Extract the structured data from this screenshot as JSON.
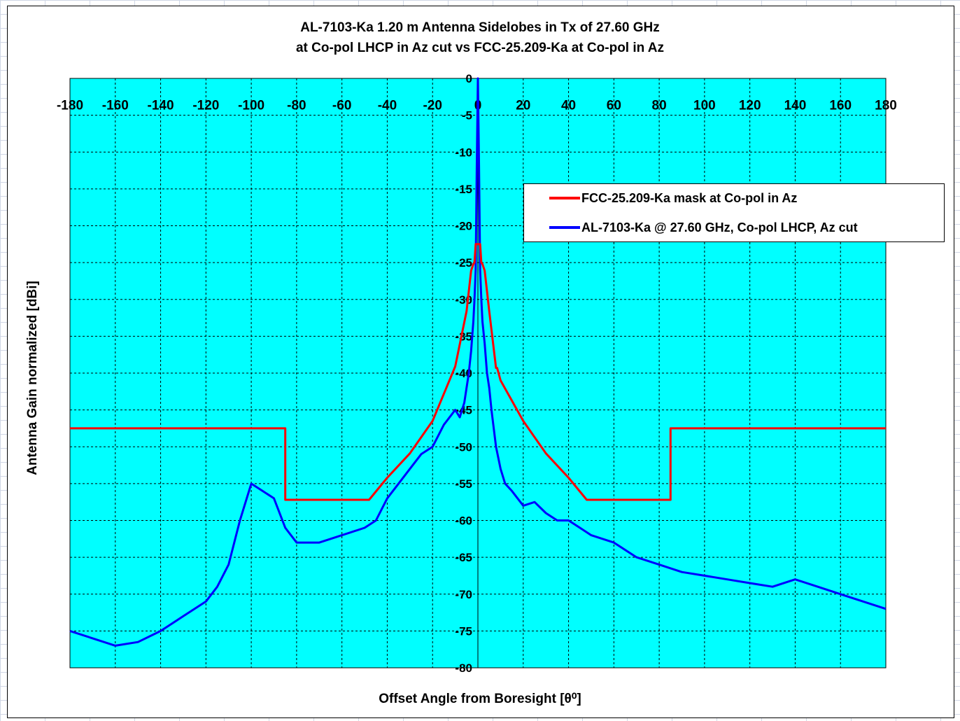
{
  "chart_data": {
    "type": "line",
    "title": "AL-7103-Ka 1.20 m Antenna Sidelobes in Tx of 27.60 GHz",
    "subtitle": "at Co-pol LHCP in Az cut vs FCC-25.209-Ka at Co-pol in Az",
    "xlabel": "Offset Angle from Boresight [θ⁰]",
    "ylabel": "Antenna Gain normalized [dBi]",
    "xlim": [
      -180,
      180
    ],
    "ylim": [
      -80,
      0
    ],
    "xticks": [
      "-180",
      "-160",
      "-140",
      "-120",
      "-100",
      "-80",
      "-60",
      "-40",
      "-20",
      "0",
      "20",
      "40",
      "60",
      "80",
      "100",
      "120",
      "140",
      "160",
      "180"
    ],
    "yticks": [
      "0",
      "-5",
      "-10",
      "-15",
      "-20",
      "-25",
      "-30",
      "-35",
      "-40",
      "-45",
      "-50",
      "-55",
      "-60",
      "-65",
      "-70",
      "-75",
      "-80"
    ],
    "grid": true,
    "plot_background": "#00ffff",
    "legend_position": "top-right",
    "series": [
      {
        "name": "FCC-25.209-Ka mask at Co-pol in Az",
        "color": "#ff0000",
        "x": [
          -180,
          -85,
          -85,
          -48,
          -40,
          -30,
          -20,
          -10,
          -5,
          -3,
          -2,
          -1.5,
          -1,
          1,
          1.5,
          2,
          3,
          5,
          8,
          8.5,
          10,
          20,
          30,
          40,
          48,
          85,
          85,
          180
        ],
        "y": [
          -47.5,
          -47.5,
          -57.2,
          -57.2,
          -54.2,
          -50.9,
          -46.5,
          -39.1,
          -31.6,
          -26.1,
          -25.2,
          -25,
          -22.5,
          -22.5,
          -25,
          -25.2,
          -26.1,
          -31.6,
          -39.3,
          -39.3,
          -41,
          -46.5,
          -50.9,
          -54.2,
          -57.2,
          -57.2,
          -47.5,
          -47.5
        ]
      },
      {
        "name": "AL-7103-Ka @ 27.60 GHz, Co-pol LHCP, Az cut",
        "color": "#0000ff",
        "x": [
          -180,
          -170,
          -160,
          -150,
          -140,
          -130,
          -125,
          -120,
          -115,
          -110,
          -105,
          -100,
          -95,
          -90,
          -85,
          -80,
          -70,
          -60,
          -50,
          -45,
          -40,
          -35,
          -30,
          -25,
          -20,
          -15,
          -10,
          -8,
          -6,
          -5,
          -4,
          -3,
          -2,
          -1.5,
          -1,
          -0.5,
          0,
          0.5,
          1,
          1.5,
          2,
          3,
          4,
          5,
          6,
          8,
          10,
          12,
          15,
          20,
          25,
          30,
          35,
          40,
          45,
          50,
          60,
          70,
          80,
          90,
          100,
          110,
          120,
          130,
          140,
          150,
          160,
          170,
          180
        ],
        "y": [
          -75,
          -76,
          -77,
          -76.5,
          -75,
          -73,
          -72,
          -71,
          -69,
          -66,
          -60,
          -55,
          -56,
          -57,
          -61,
          -63,
          -63,
          -62,
          -61,
          -60,
          -57,
          -55,
          -53,
          -51,
          -50,
          -47,
          -45,
          -46,
          -44,
          -42,
          -40,
          -37,
          -33,
          -30,
          -26,
          -12,
          0,
          -12,
          -26,
          -30,
          -33,
          -36,
          -40,
          -42,
          -45,
          -50,
          -53,
          -55,
          -56,
          -58,
          -57.5,
          -59,
          -60,
          -60,
          -61,
          -62,
          -63,
          -65,
          -66,
          -67,
          -67.5,
          -68,
          -68.5,
          -69,
          -68,
          -69,
          -70,
          -71,
          -72
        ]
      }
    ]
  }
}
